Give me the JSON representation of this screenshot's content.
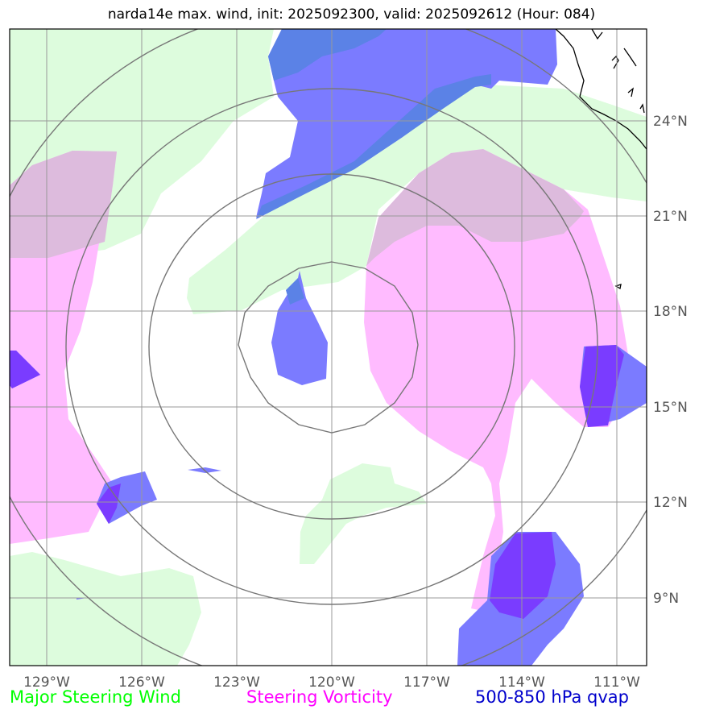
{
  "title": "narda14e max. wind, init: 2025092300, valid: 2025092612 (Hour: 084)",
  "axes": {
    "lon_ticks": [
      "129°W",
      "126°W",
      "123°W",
      "120°W",
      "117°W",
      "114°W",
      "111°W"
    ],
    "lat_ticks": [
      "24°N",
      "21°N",
      "18°N",
      "15°N",
      "12°N",
      "9°N"
    ]
  },
  "legend": [
    {
      "label": "Major Steering Wind",
      "color": "#00ff00"
    },
    {
      "label": "Steering Vorticity",
      "color": "#ff00ff"
    },
    {
      "label": "500-850 hPa qvap",
      "color": "#0000cc"
    }
  ],
  "layer_colors": {
    "wind": "#ddfcdd",
    "vorticity": "#ffbbff",
    "qvap": "#7b7bff",
    "qvap_strong": "#7a3cff",
    "overlap_pink_green": "#ddbbdd",
    "overlap_blue_green": "#5b82e6"
  },
  "storm_center": {
    "lon": -120.0,
    "lat": 17.0
  }
}
